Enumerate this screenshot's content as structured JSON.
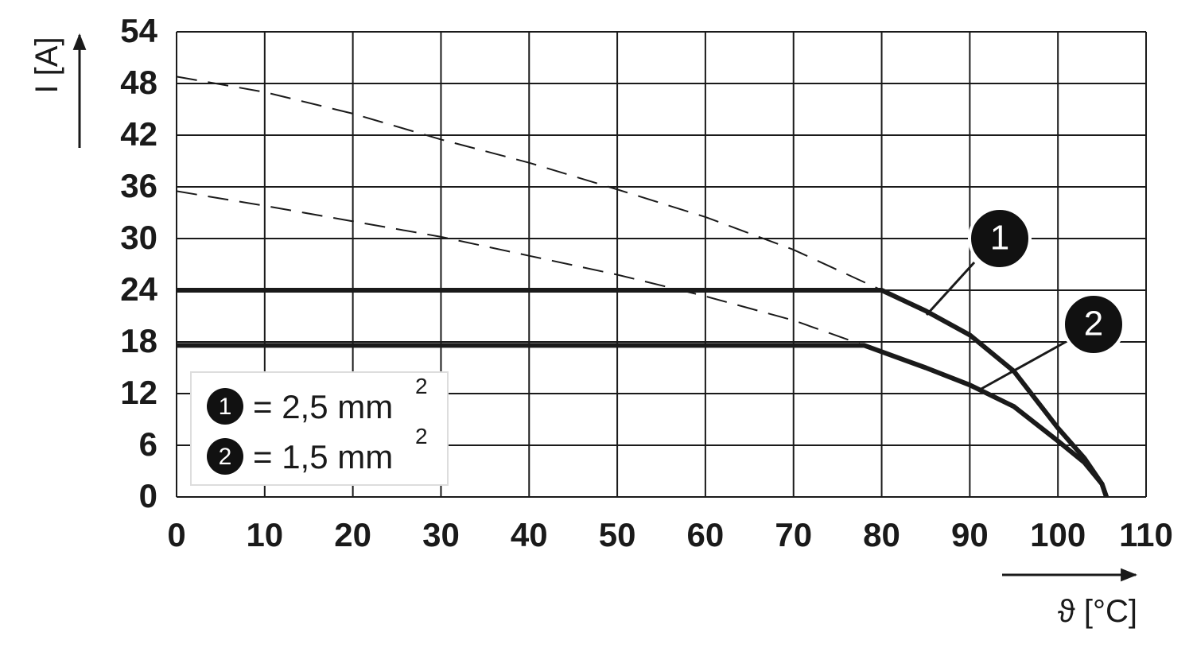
{
  "chart_data": {
    "type": "line",
    "x_label": "ϑ [°C]",
    "y_label": "I [A]",
    "xlim": [
      0,
      110
    ],
    "xticks": [
      0,
      10,
      20,
      30,
      40,
      50,
      60,
      70,
      80,
      90,
      100,
      110
    ],
    "ylim": [
      0,
      54
    ],
    "yticks": [
      0,
      6,
      12,
      18,
      24,
      30,
      36,
      42,
      48,
      54
    ],
    "grid": true,
    "series": [
      {
        "marker": "1",
        "name": "= 2,5 mm",
        "name_sup": "2",
        "color": "#1a1a1a",
        "x": [
          0,
          80,
          85,
          90,
          95,
          100,
          103,
          105,
          105.5
        ],
        "values": [
          24,
          24,
          21.6,
          18.8,
          14.6,
          8,
          4.5,
          1.5,
          0
        ],
        "dashed_x": [
          0,
          10,
          20,
          30,
          40,
          50,
          60,
          70,
          80
        ],
        "dashed_values": [
          48.8,
          47,
          44.5,
          41.5,
          38.8,
          35.7,
          32.5,
          28.7,
          24
        ]
      },
      {
        "marker": "2",
        "name": "= 1,5 mm",
        "name_sup": "2",
        "color": "#1a1a1a",
        "x": [
          0,
          78,
          85,
          90,
          95,
          100,
          103,
          105,
          105.5
        ],
        "values": [
          17.6,
          17.6,
          15,
          13,
          10.5,
          6.5,
          4,
          1.5,
          0
        ],
        "dashed_x": [
          0,
          10,
          20,
          30,
          40,
          50,
          60,
          70,
          78
        ],
        "dashed_values": [
          35.5,
          33.8,
          32,
          30.2,
          28,
          25.8,
          23.3,
          20.5,
          17.6
        ]
      }
    ]
  }
}
